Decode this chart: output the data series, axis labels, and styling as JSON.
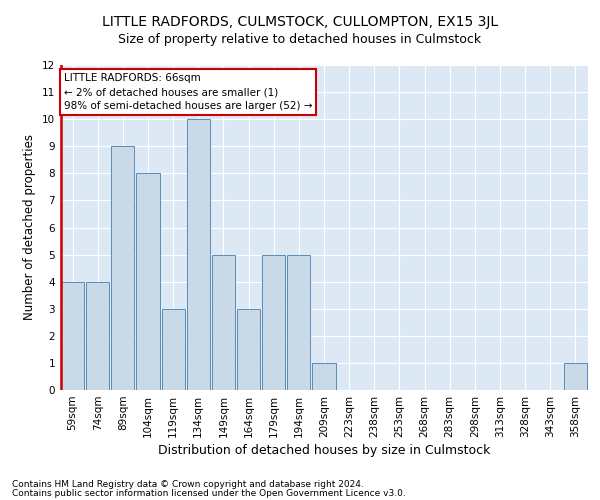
{
  "title": "LITTLE RADFORDS, CULMSTOCK, CULLOMPTON, EX15 3JL",
  "subtitle": "Size of property relative to detached houses in Culmstock",
  "xlabel": "Distribution of detached houses by size in Culmstock",
  "ylabel": "Number of detached properties",
  "footer_line1": "Contains HM Land Registry data © Crown copyright and database right 2024.",
  "footer_line2": "Contains public sector information licensed under the Open Government Licence v3.0.",
  "bins": [
    "59sqm",
    "74sqm",
    "89sqm",
    "104sqm",
    "119sqm",
    "134sqm",
    "149sqm",
    "164sqm",
    "179sqm",
    "194sqm",
    "209sqm",
    "223sqm",
    "238sqm",
    "253sqm",
    "268sqm",
    "283sqm",
    "298sqm",
    "313sqm",
    "328sqm",
    "343sqm",
    "358sqm"
  ],
  "values": [
    4,
    4,
    9,
    8,
    3,
    10,
    5,
    3,
    5,
    5,
    1,
    0,
    0,
    0,
    0,
    0,
    0,
    0,
    0,
    0,
    1
  ],
  "bar_color": "#c9d9e8",
  "bar_edge_color": "#5b8db8",
  "highlight_bin_index": 0,
  "highlight_color": "#cc0000",
  "annotation_text": "LITTLE RADFORDS: 66sqm\n← 2% of detached houses are smaller (1)\n98% of semi-detached houses are larger (52) →",
  "annotation_box_color": "#ffffff",
  "annotation_box_edge_color": "#cc0000",
  "ylim": [
    0,
    12
  ],
  "yticks": [
    0,
    1,
    2,
    3,
    4,
    5,
    6,
    7,
    8,
    9,
    10,
    11,
    12
  ],
  "background_color": "#dce9f5",
  "grid_color": "#ffffff",
  "title_fontsize": 10,
  "subtitle_fontsize": 9,
  "axis_label_fontsize": 8.5,
  "tick_fontsize": 7.5,
  "annotation_fontsize": 7.5,
  "footer_fontsize": 6.5
}
